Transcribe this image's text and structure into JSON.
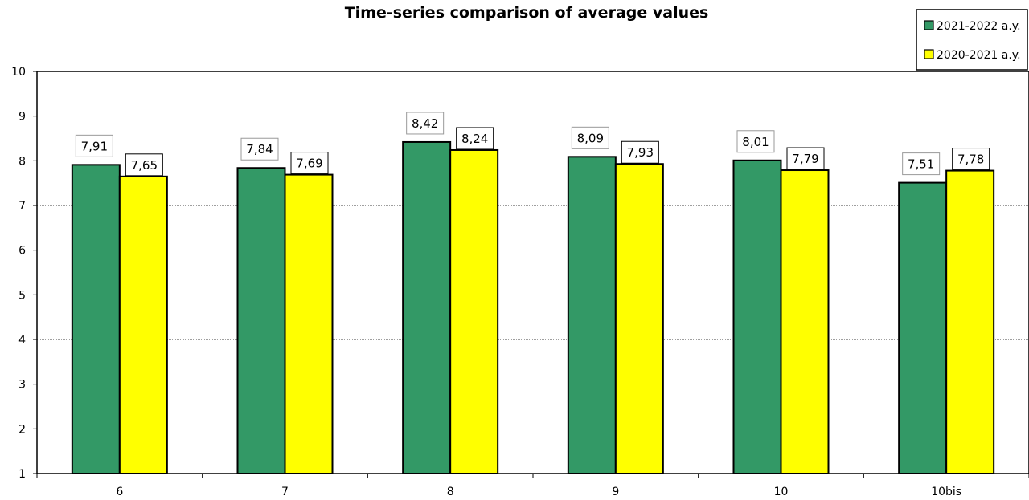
{
  "chart_data": {
    "type": "bar",
    "title": "Time-series comparison of average values",
    "xlabel": "",
    "ylabel": "",
    "ylim": [
      1,
      10
    ],
    "yticks": [
      1,
      2,
      3,
      4,
      5,
      6,
      7,
      8,
      9,
      10
    ],
    "grid": true,
    "legend_position": "top-right",
    "categories": [
      "6",
      "7",
      "8",
      "9",
      "10",
      "10bis"
    ],
    "series": [
      {
        "name": "2021-2022 a.y.",
        "color": "#339966",
        "values": [
          7.91,
          7.84,
          8.42,
          8.09,
          8.01,
          7.51
        ],
        "labels": [
          "7,91",
          "7,84",
          "8,42",
          "8,09",
          "8,01",
          "7,51"
        ]
      },
      {
        "name": "2020-2021 a.y.",
        "color": "#ffff00",
        "values": [
          7.65,
          7.69,
          8.24,
          7.93,
          7.79,
          7.78
        ],
        "labels": [
          "7,65",
          "7,69",
          "8,24",
          "7,93",
          "7,79",
          "7,78"
        ]
      }
    ]
  }
}
